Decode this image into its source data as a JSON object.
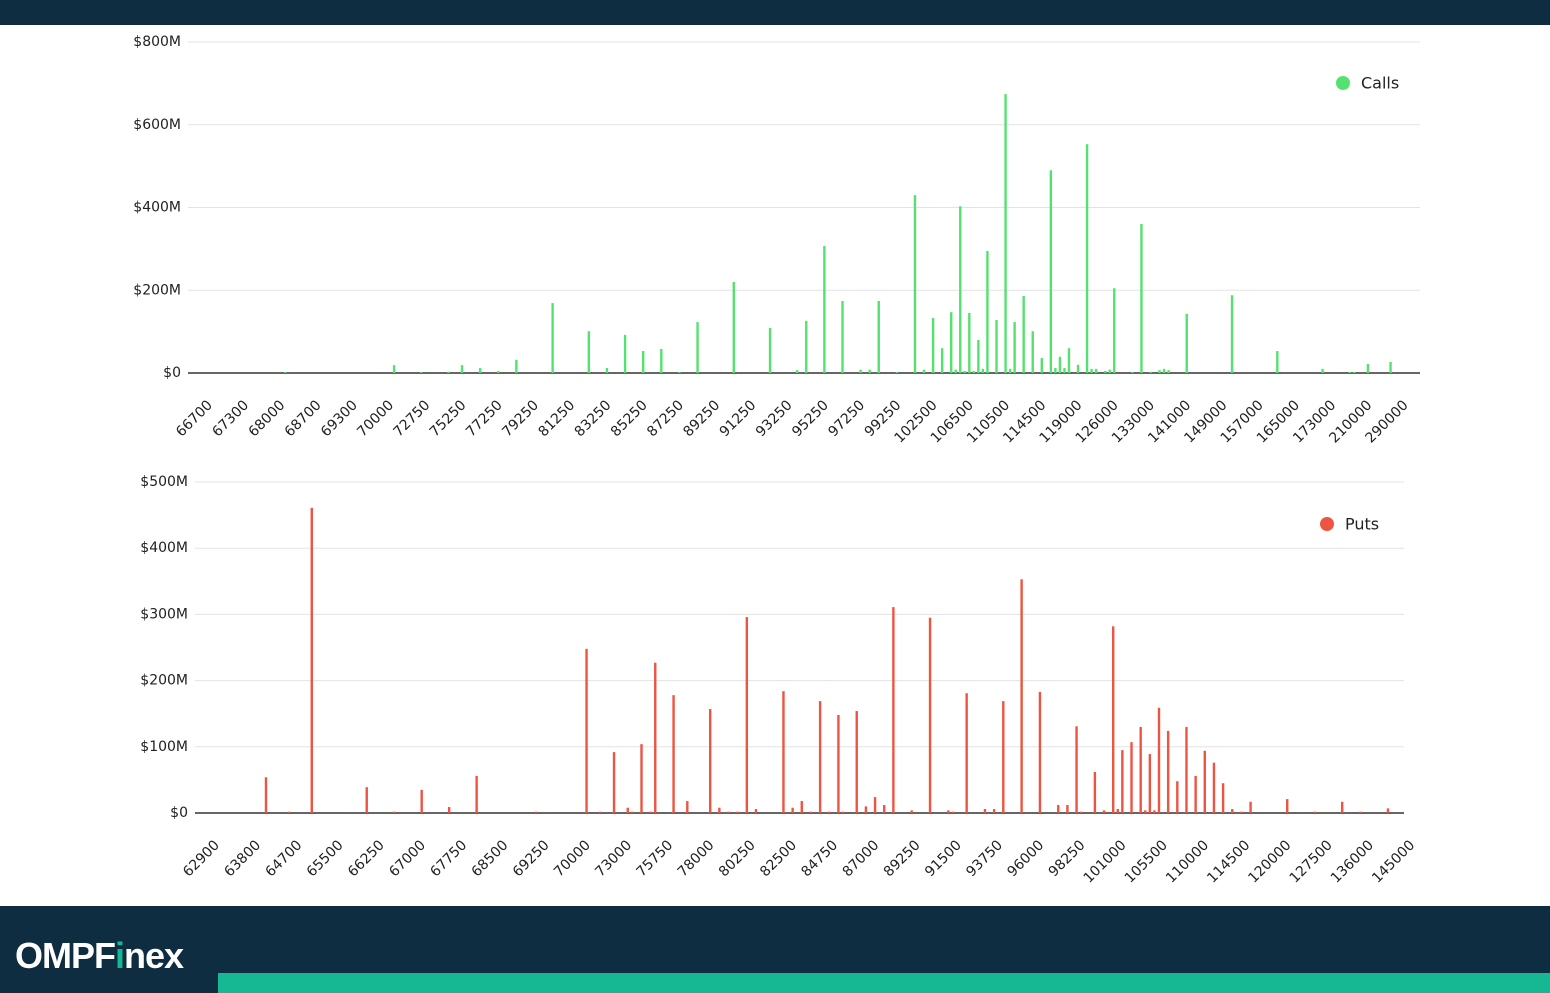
{
  "chart_data": [
    {
      "type": "bar",
      "categories": [
        "66700",
        null,
        null,
        null,
        null,
        null,
        null,
        null,
        "67300",
        null,
        null,
        null,
        null,
        null,
        null,
        null,
        "68000",
        null,
        null,
        null,
        null,
        null,
        null,
        null,
        "68700",
        null,
        null,
        null,
        null,
        null,
        null,
        null,
        "69300",
        null,
        null,
        null,
        null,
        null,
        null,
        null,
        "70000",
        null,
        null,
        null,
        null,
        null,
        null,
        null,
        "72750",
        null,
        null,
        null,
        null,
        null,
        null,
        null,
        "75250",
        null,
        null,
        null,
        null,
        null,
        null,
        null,
        "77250",
        null,
        null,
        null,
        null,
        null,
        null,
        null,
        "79250",
        null,
        null,
        null,
        null,
        null,
        null,
        null,
        "81250",
        null,
        null,
        null,
        null,
        null,
        null,
        null,
        "83250",
        null,
        null,
        null,
        null,
        null,
        null,
        null,
        "85250",
        null,
        null,
        null,
        null,
        null,
        null,
        null,
        "87250",
        null,
        null,
        null,
        null,
        null,
        null,
        null,
        "89250",
        null,
        null,
        null,
        null,
        null,
        null,
        null,
        "91250",
        null,
        null,
        null,
        null,
        null,
        null,
        null,
        "93250",
        null,
        null,
        null,
        null,
        null,
        null,
        null,
        "95250",
        null,
        null,
        null,
        null,
        null,
        null,
        null,
        "97250",
        null,
        null,
        null,
        null,
        null,
        null,
        null,
        "99250",
        null,
        null,
        null,
        null,
        null,
        null,
        null,
        "102500",
        null,
        null,
        null,
        null,
        null,
        null,
        null,
        "106500",
        null,
        null,
        null,
        null,
        null,
        null,
        null,
        "110500",
        null,
        null,
        null,
        null,
        null,
        null,
        null,
        "114500",
        null,
        null,
        null,
        null,
        null,
        null,
        null,
        "119000",
        null,
        null,
        null,
        null,
        null,
        null,
        null,
        "126000",
        null,
        null,
        null,
        null,
        null,
        null,
        null,
        "133000",
        null,
        null,
        null,
        null,
        null,
        null,
        null,
        "141000",
        null,
        null,
        null,
        null,
        null,
        null,
        null,
        "149000",
        null,
        null,
        null,
        null,
        null,
        null,
        null,
        "157000",
        null,
        null,
        null,
        null,
        null,
        null,
        null,
        "165000",
        null,
        null,
        null,
        null,
        null,
        null,
        null,
        "173000",
        null,
        null,
        null,
        null,
        null,
        null,
        null,
        "210000",
        null,
        null,
        null,
        null,
        null,
        null,
        null,
        "290000",
        null,
        null,
        null,
        null,
        null,
        null,
        null
      ],
      "series": [
        {
          "name": "Calls",
          "color": "#55e16f",
          "values": [
            0,
            0,
            0,
            0,
            0,
            0,
            0,
            0,
            0,
            0,
            0,
            0,
            0,
            0,
            0,
            0,
            0,
            0,
            0,
            0,
            0,
            2,
            0,
            0,
            0,
            0,
            0,
            0,
            0,
            0,
            0,
            0,
            0,
            0,
            0,
            0,
            0,
            0,
            0,
            0,
            0,
            0,
            0,
            0,
            0,
            19,
            0,
            0,
            0,
            0,
            0,
            2,
            0,
            0,
            0,
            0,
            0,
            3,
            0,
            0,
            19,
            0,
            0,
            0,
            12,
            0,
            0,
            0,
            5,
            0,
            0,
            0,
            32,
            0,
            0,
            0,
            0,
            0,
            0,
            0,
            169,
            0,
            0,
            0,
            0,
            0,
            0,
            0,
            101,
            0,
            0,
            0,
            12,
            0,
            0,
            0,
            92,
            0,
            0,
            0,
            53,
            0,
            0,
            0,
            58,
            0,
            0,
            0,
            2,
            0,
            0,
            0,
            123,
            0,
            0,
            0,
            0,
            0,
            0,
            0,
            220,
            0,
            0,
            0,
            0,
            0,
            0,
            0,
            109,
            0,
            0,
            0,
            0,
            0,
            7,
            0,
            126,
            0,
            0,
            0,
            307,
            0,
            0,
            0,
            174,
            0,
            0,
            0,
            8,
            0,
            8,
            0,
            174,
            0,
            0,
            0,
            2,
            0,
            0,
            0,
            430,
            0,
            8,
            0,
            133,
            0,
            60,
            0,
            147,
            8,
            403,
            5,
            145,
            5,
            80,
            10,
            295,
            0,
            128,
            0,
            674,
            10,
            123,
            0,
            186,
            0,
            101,
            0,
            36,
            0,
            490,
            12,
            39,
            12,
            60,
            0,
            20,
            0,
            553,
            10,
            10,
            0,
            5,
            8,
            205,
            0,
            0,
            0,
            2,
            0,
            360,
            0,
            3,
            0,
            7,
            10,
            7,
            0,
            0,
            0,
            143,
            0,
            0,
            0,
            0,
            0,
            0,
            0,
            0,
            0,
            188,
            0,
            0,
            0,
            0,
            0,
            0,
            0,
            0,
            0,
            53,
            0,
            0,
            0,
            0,
            0,
            0,
            0,
            0,
            0,
            10,
            0,
            0,
            0,
            0,
            0,
            2,
            2,
            0,
            0,
            22,
            0,
            0,
            0,
            0,
            27,
            0,
            0,
            0,
            0,
            0,
            0
          ]
        }
      ],
      "ylim": [
        0,
        800
      ],
      "yticks": [
        {
          "value": 0,
          "label": "$0"
        },
        {
          "value": 200,
          "label": "$200M"
        },
        {
          "value": 400,
          "label": "$400M"
        },
        {
          "value": 600,
          "label": "$600M"
        },
        {
          "value": 800,
          "label": "$800M"
        }
      ],
      "grid": true,
      "legend": "top-right"
    },
    {
      "type": "bar",
      "categories": [
        "62900",
        null,
        null,
        null,
        null,
        null,
        null,
        null,
        null,
        "63800",
        null,
        null,
        null,
        null,
        null,
        null,
        null,
        null,
        "64700",
        null,
        null,
        null,
        null,
        null,
        null,
        null,
        null,
        "65500",
        null,
        null,
        null,
        null,
        null,
        null,
        null,
        null,
        "66250",
        null,
        null,
        null,
        null,
        null,
        null,
        null,
        null,
        "67000",
        null,
        null,
        null,
        null,
        null,
        null,
        null,
        null,
        "67750",
        null,
        null,
        null,
        null,
        null,
        null,
        null,
        null,
        "68500",
        null,
        null,
        null,
        null,
        null,
        null,
        null,
        null,
        "69250",
        null,
        null,
        null,
        null,
        null,
        null,
        null,
        null,
        "70000",
        null,
        null,
        null,
        null,
        null,
        null,
        null,
        null,
        "73000",
        null,
        null,
        null,
        null,
        null,
        null,
        null,
        null,
        "75750",
        null,
        null,
        null,
        null,
        null,
        null,
        null,
        null,
        "78000",
        null,
        null,
        null,
        null,
        null,
        null,
        null,
        null,
        "80250",
        null,
        null,
        null,
        null,
        null,
        null,
        null,
        null,
        "82500",
        null,
        null,
        null,
        null,
        null,
        null,
        null,
        null,
        "84750",
        null,
        null,
        null,
        null,
        null,
        null,
        null,
        null,
        "87000",
        null,
        null,
        null,
        null,
        null,
        null,
        null,
        null,
        "89250",
        null,
        null,
        null,
        null,
        null,
        null,
        null,
        null,
        "91500",
        null,
        null,
        null,
        null,
        null,
        null,
        null,
        null,
        "93750",
        null,
        null,
        null,
        null,
        null,
        null,
        null,
        null,
        "96000",
        null,
        null,
        null,
        null,
        null,
        null,
        null,
        null,
        "98250",
        null,
        null,
        null,
        null,
        null,
        null,
        null,
        null,
        "101000",
        null,
        null,
        null,
        null,
        null,
        null,
        null,
        null,
        "105500",
        null,
        null,
        null,
        null,
        null,
        null,
        null,
        null,
        "110000",
        null,
        null,
        null,
        null,
        null,
        null,
        null,
        null,
        "114500",
        null,
        null,
        null,
        null,
        null,
        null,
        null,
        null,
        "120000",
        null,
        null,
        null,
        null,
        null,
        null,
        null,
        null,
        "127500",
        null,
        null,
        null,
        null,
        null,
        null,
        null,
        null,
        "136000",
        null,
        null,
        null,
        null,
        null,
        null,
        null,
        null,
        "145000",
        null,
        null
      ],
      "series": [
        {
          "name": "Puts",
          "color": "#ee5442",
          "values": [
            0,
            0,
            0,
            0,
            0,
            0,
            0,
            0,
            0,
            0,
            0,
            0,
            0,
            0,
            0,
            54,
            0,
            0,
            0,
            0,
            2,
            0,
            0,
            0,
            0,
            461,
            0,
            0,
            0,
            0,
            0,
            0,
            0,
            0,
            0,
            0,
            0,
            39,
            0,
            0,
            0,
            0,
            0,
            2,
            0,
            0,
            0,
            0,
            0,
            35,
            0,
            0,
            0,
            0,
            0,
            9,
            0,
            0,
            0,
            0,
            0,
            56,
            0,
            0,
            0,
            0,
            0,
            0,
            0,
            0,
            0,
            0,
            0,
            0,
            2,
            0,
            0,
            0,
            0,
            0,
            0,
            0,
            0,
            0,
            0,
            248,
            0,
            0,
            2,
            0,
            0,
            92,
            0,
            0,
            8,
            2,
            0,
            104,
            0,
            2,
            227,
            0,
            0,
            0,
            178,
            0,
            0,
            18,
            0,
            0,
            0,
            0,
            157,
            0,
            8,
            0,
            2,
            0,
            2,
            0,
            296,
            0,
            6,
            0,
            0,
            0,
            0,
            0,
            184,
            0,
            8,
            0,
            18,
            0,
            2,
            0,
            169,
            0,
            2,
            0,
            148,
            2,
            0,
            0,
            154,
            0,
            10,
            0,
            24,
            0,
            12,
            0,
            311,
            0,
            0,
            0,
            4,
            0,
            0,
            0,
            295,
            0,
            0,
            0,
            4,
            2,
            0,
            0,
            181,
            0,
            0,
            0,
            6,
            0,
            6,
            0,
            169,
            0,
            0,
            0,
            353,
            0,
            0,
            0,
            183,
            0,
            0,
            0,
            12,
            0,
            12,
            0,
            131,
            2,
            0,
            0,
            62,
            0,
            4,
            0,
            282,
            6,
            95,
            0,
            107,
            0,
            130,
            4,
            89,
            4,
            159,
            0,
            124,
            0,
            48,
            0,
            130,
            0,
            56,
            0,
            94,
            0,
            76,
            0,
            45,
            0,
            6,
            0,
            2,
            0,
            17,
            0,
            0,
            0,
            0,
            0,
            0,
            0,
            21,
            0,
            0,
            0,
            0,
            0,
            2,
            0,
            0,
            0,
            0,
            0,
            17,
            0,
            0,
            0,
            2,
            0,
            0,
            0,
            0,
            0,
            7,
            0,
            0,
            0
          ]
        }
      ],
      "ylim": [
        0,
        500
      ],
      "yticks": [
        {
          "value": 0,
          "label": "$0"
        },
        {
          "value": 100,
          "label": "$100M"
        },
        {
          "value": 200,
          "label": "$200M"
        },
        {
          "value": 300,
          "label": "$300M"
        },
        {
          "value": 400,
          "label": "$400M"
        },
        {
          "value": 500,
          "label": "$500M"
        }
      ],
      "grid": true,
      "legend": "top-right"
    }
  ],
  "footer": {
    "logo": [
      "OMPF",
      "i",
      "nex"
    ]
  }
}
